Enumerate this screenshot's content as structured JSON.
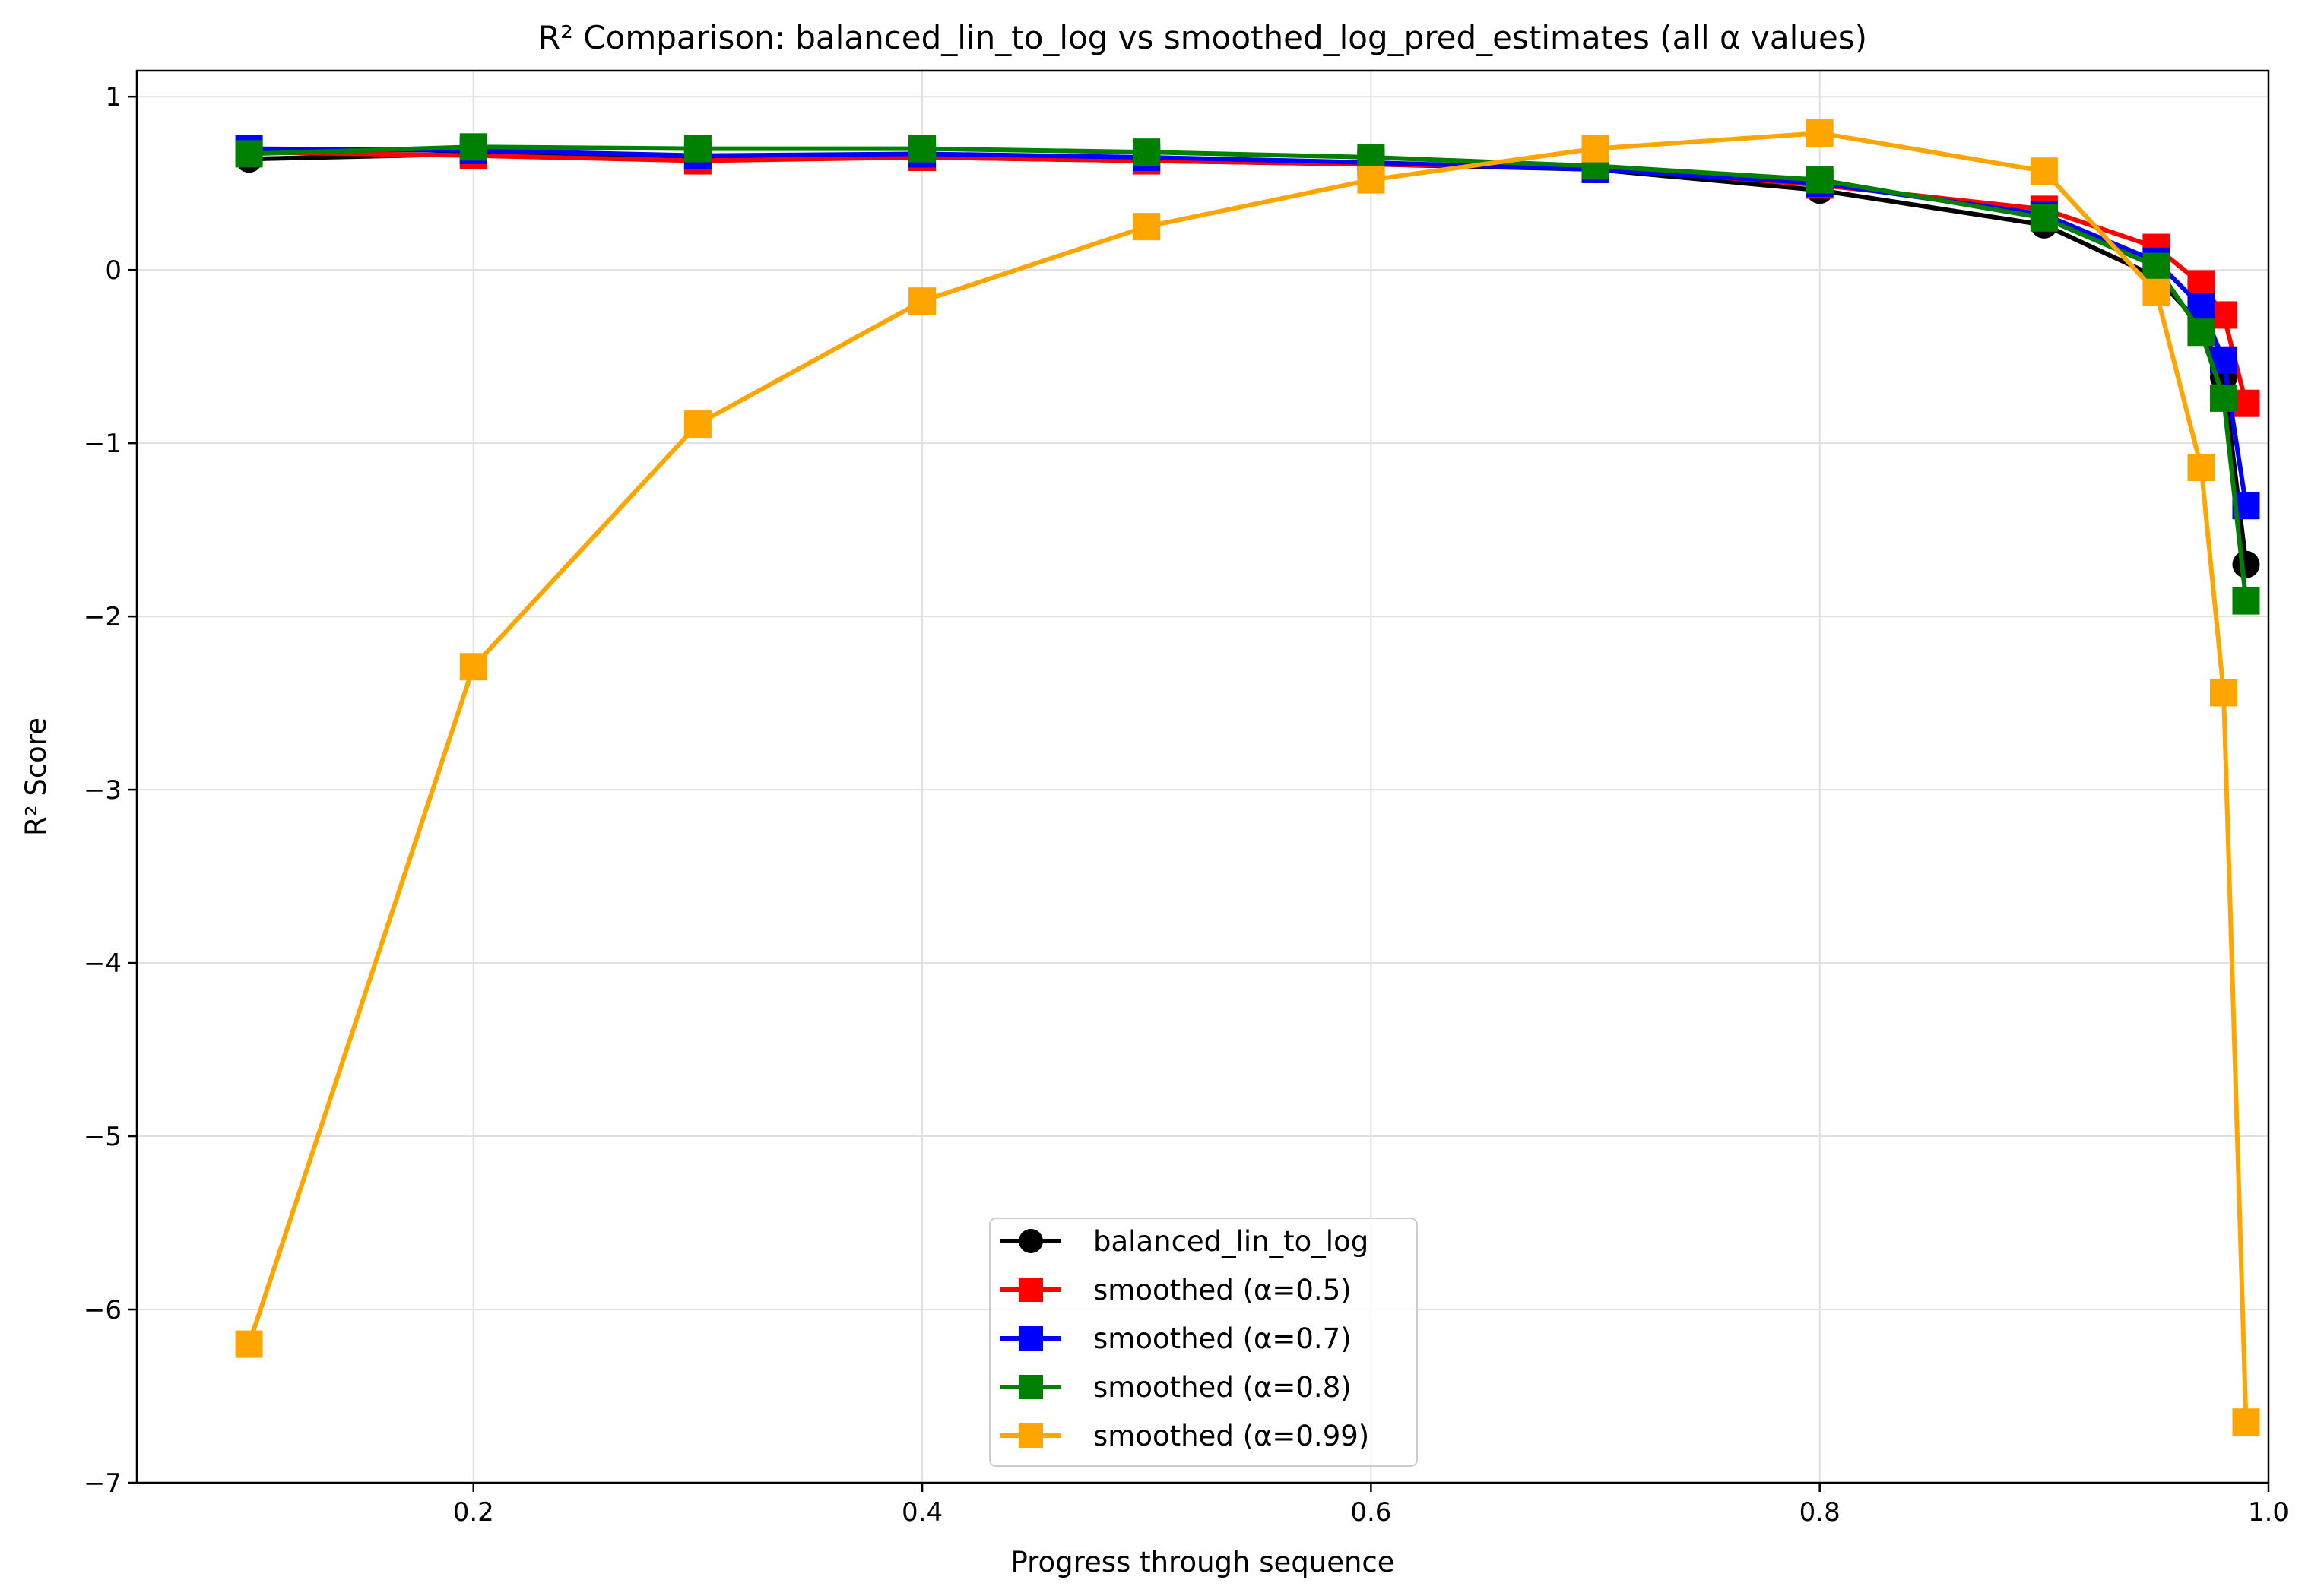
{
  "chart_data": {
    "type": "line",
    "title": "R² Comparison: balanced_lin_to_log vs smoothed_log_pred_estimates (all α values)",
    "xlabel": "Progress through sequence",
    "ylabel": "R² Score",
    "xlim": [
      0.05,
      1.0
    ],
    "ylim": [
      -7.0,
      1.15
    ],
    "xticks": [
      0.2,
      0.4,
      0.6,
      0.8,
      1.0
    ],
    "xtick_labels": [
      "0.2",
      "0.4",
      "0.6",
      "0.8",
      "1.0"
    ],
    "yticks": [
      1,
      0,
      -1,
      -2,
      -3,
      -4,
      -5,
      -6,
      -7
    ],
    "ytick_labels": [
      "1",
      "0",
      "−1",
      "−2",
      "−3",
      "−4",
      "−5",
      "−6",
      "−7"
    ],
    "grid": true,
    "legend_position": "bottom-center",
    "x": [
      0.1,
      0.2,
      0.3,
      0.4,
      0.5,
      0.6,
      0.7,
      0.8,
      0.9,
      0.95,
      0.97,
      0.98,
      0.99
    ],
    "series": [
      {
        "name": "balanced_lin_to_log",
        "color": "#000000",
        "marker": "circle",
        "values": [
          0.64,
          0.67,
          0.64,
          0.65,
          0.63,
          0.61,
          0.58,
          0.46,
          0.26,
          -0.04,
          -0.32,
          -0.62,
          -1.7
        ]
      },
      {
        "name": "smoothed (α=0.5)",
        "color": "#ff0000",
        "marker": "square",
        "values": [
          0.68,
          0.66,
          0.63,
          0.65,
          0.63,
          0.61,
          0.59,
          0.49,
          0.35,
          0.13,
          -0.08,
          -0.26,
          -0.77
        ]
      },
      {
        "name": "smoothed (α=0.7)",
        "color": "#0000ff",
        "marker": "square",
        "values": [
          0.7,
          0.69,
          0.66,
          0.67,
          0.65,
          0.62,
          0.58,
          0.5,
          0.32,
          0.05,
          -0.21,
          -0.52,
          -1.36
        ]
      },
      {
        "name": "smoothed (α=0.8)",
        "color": "#008000",
        "marker": "square",
        "values": [
          0.67,
          0.71,
          0.7,
          0.7,
          0.68,
          0.65,
          0.6,
          0.52,
          0.3,
          0.02,
          -0.36,
          -0.74,
          -1.91
        ]
      },
      {
        "name": "smoothed (α=0.99)",
        "color": "#ffa500",
        "marker": "square",
        "values": [
          -6.2,
          -2.29,
          -0.89,
          -0.18,
          0.25,
          0.52,
          0.7,
          0.79,
          0.57,
          -0.13,
          -1.14,
          -2.44,
          -6.65
        ]
      }
    ]
  }
}
